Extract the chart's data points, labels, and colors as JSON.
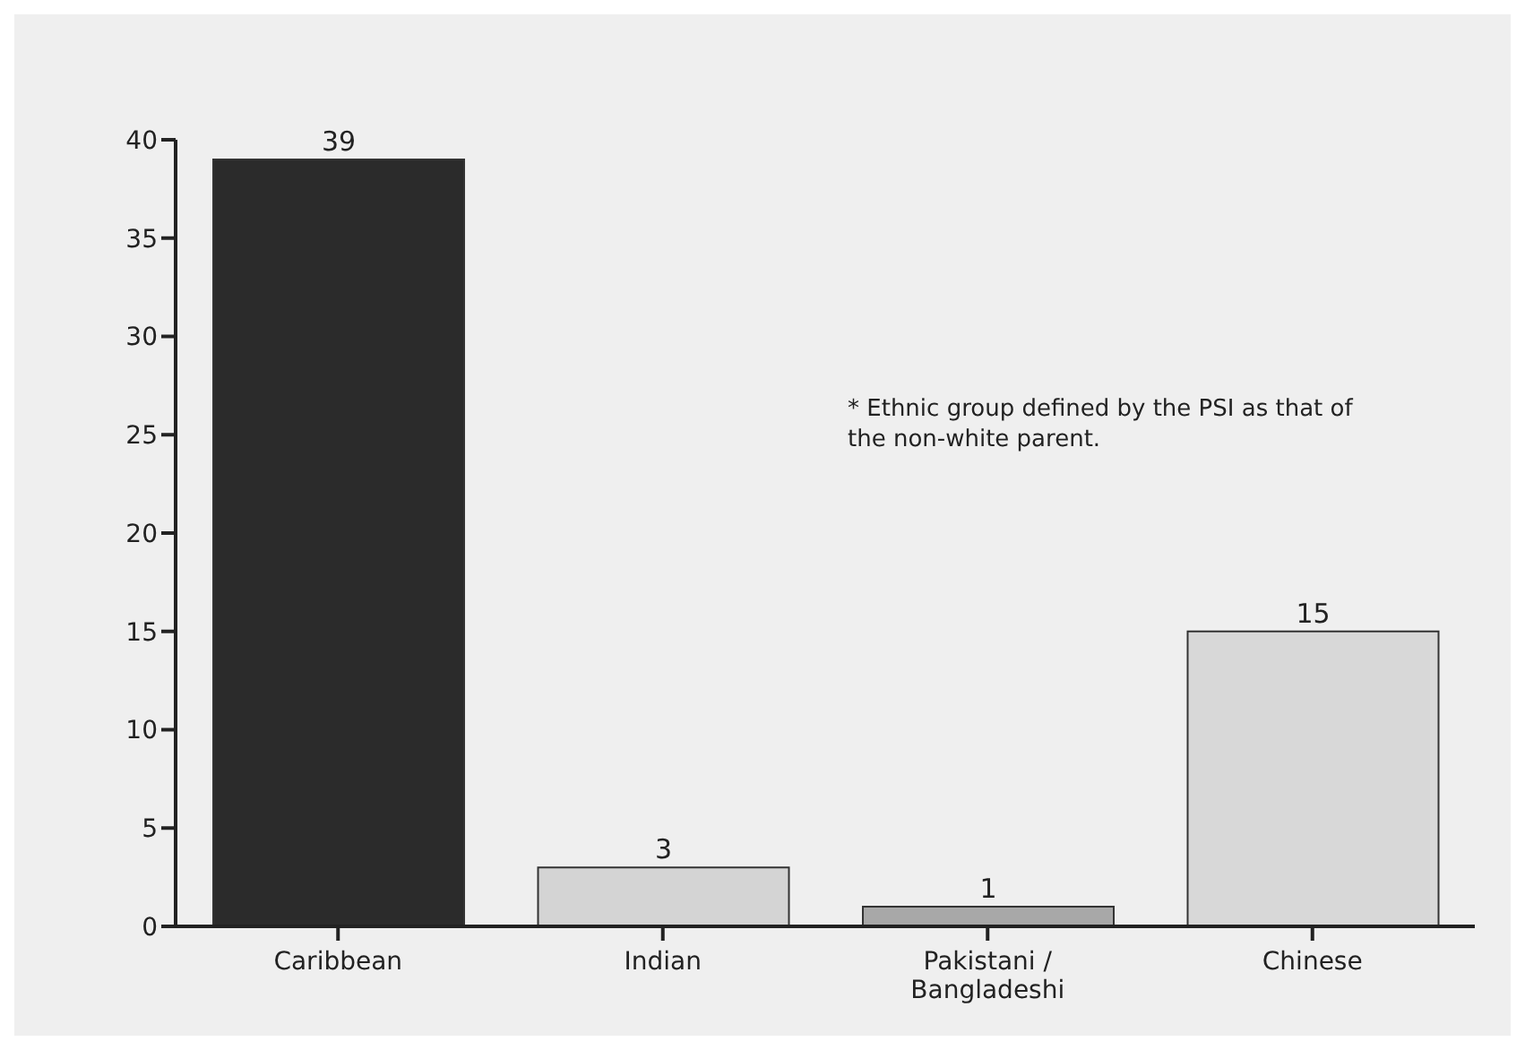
{
  "chart_data": {
    "type": "bar",
    "categories": [
      "Caribbean",
      "Indian",
      "Pakistani / Bangladeshi",
      "Chinese"
    ],
    "values": [
      39,
      3,
      1,
      15
    ],
    "colors": [
      "#2b2b2b",
      "#d4d4d4",
      "#a8a8a8",
      "#d8d8d8"
    ],
    "ylim": [
      0,
      40
    ],
    "yticks": [
      0,
      5,
      10,
      15,
      20,
      25,
      30,
      35,
      40
    ],
    "grid": false,
    "data_labels": true,
    "annotations": [
      "* Ethnic group defined by the PSI as that of the non-white parent."
    ]
  }
}
